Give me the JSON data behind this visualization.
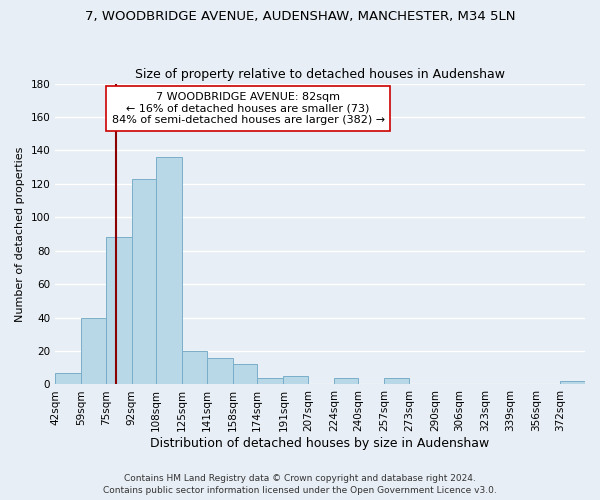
{
  "title": "7, WOODBRIDGE AVENUE, AUDENSHAW, MANCHESTER, M34 5LN",
  "subtitle": "Size of property relative to detached houses in Audenshaw",
  "xlabel": "Distribution of detached houses by size in Audenshaw",
  "ylabel": "Number of detached properties",
  "bar_labels": [
    "42sqm",
    "59sqm",
    "75sqm",
    "92sqm",
    "108sqm",
    "125sqm",
    "141sqm",
    "158sqm",
    "174sqm",
    "191sqm",
    "207sqm",
    "224sqm",
    "240sqm",
    "257sqm",
    "273sqm",
    "290sqm",
    "306sqm",
    "323sqm",
    "339sqm",
    "356sqm",
    "372sqm"
  ],
  "bar_heights": [
    7,
    40,
    88,
    123,
    136,
    20,
    16,
    12,
    4,
    5,
    0,
    4,
    0,
    4,
    0,
    0,
    0,
    0,
    0,
    0,
    2
  ],
  "bar_color": "#b8d8e8",
  "bar_edge_color": "#7aaec8",
  "bg_color": "#e8eef5",
  "grid_color": "#ffffff",
  "property_value": 82,
  "property_label": "7 WOODBRIDGE AVENUE: 82sqm",
  "annotation_line1": "← 16% of detached houses are smaller (73)",
  "annotation_line2": "84% of semi-detached houses are larger (382) →",
  "red_line_color": "#8b0000",
  "annotation_box_color": "#ffffff",
  "annotation_box_edge": "#cc0000",
  "ylim": [
    0,
    180
  ],
  "yticks": [
    0,
    20,
    40,
    60,
    80,
    100,
    120,
    140,
    160,
    180
  ],
  "footer_line1": "Contains HM Land Registry data © Crown copyright and database right 2024.",
  "footer_line2": "Contains public sector information licensed under the Open Government Licence v3.0.",
  "title_fontsize": 9.5,
  "subtitle_fontsize": 9,
  "xlabel_fontsize": 9,
  "ylabel_fontsize": 8,
  "tick_fontsize": 7.5,
  "annotation_fontsize": 8,
  "footer_fontsize": 6.5,
  "bar_lefts": [
    42,
    59,
    75,
    92,
    108,
    125,
    141,
    158,
    174,
    191,
    207,
    224,
    240,
    257,
    273,
    290,
    306,
    323,
    339,
    356,
    372
  ]
}
